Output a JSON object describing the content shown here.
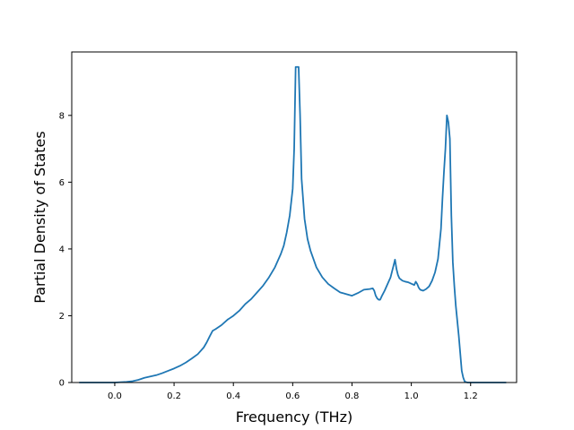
{
  "chart_data": {
    "type": "line",
    "title": "",
    "xlabel": "Frequency (THz)",
    "ylabel": "Partial Density of States",
    "xlim": [
      -0.145,
      1.355
    ],
    "ylim": [
      0,
      9.9
    ],
    "xticks": [
      0.0,
      0.2,
      0.4,
      0.6,
      0.8,
      1.0,
      1.2
    ],
    "xtick_labels": [
      "0.0",
      "0.2",
      "0.4",
      "0.6",
      "0.8",
      "1.0",
      "1.2"
    ],
    "yticks": [
      0,
      2,
      4,
      6,
      8
    ],
    "ytick_labels": [
      "0",
      "2",
      "4",
      "6",
      "8"
    ],
    "grid": false,
    "legend": "none",
    "colors": {
      "line": "#1f77b4"
    },
    "series": [
      {
        "x": [
          -0.12,
          -0.08,
          -0.04,
          0.0,
          0.02,
          0.04,
          0.06,
          0.08,
          0.1,
          0.12,
          0.14,
          0.16,
          0.18,
          0.2,
          0.22,
          0.24,
          0.26,
          0.28,
          0.3,
          0.31,
          0.32,
          0.33,
          0.34,
          0.36,
          0.38,
          0.4,
          0.42,
          0.44,
          0.46,
          0.48,
          0.5,
          0.52,
          0.54,
          0.56,
          0.57,
          0.58,
          0.59,
          0.6,
          0.605,
          0.61,
          0.615,
          0.62,
          0.625,
          0.63,
          0.64,
          0.65,
          0.66,
          0.68,
          0.7,
          0.72,
          0.74,
          0.76,
          0.78,
          0.8,
          0.82,
          0.84,
          0.86,
          0.87,
          0.875,
          0.88,
          0.885,
          0.89,
          0.895,
          0.9,
          0.91,
          0.92,
          0.93,
          0.94,
          0.945,
          0.95,
          0.955,
          0.96,
          0.97,
          0.98,
          0.99,
          1.0,
          1.01,
          1.015,
          1.02,
          1.025,
          1.03,
          1.04,
          1.05,
          1.06,
          1.07,
          1.08,
          1.09,
          1.1,
          1.105,
          1.11,
          1.115,
          1.12,
          1.125,
          1.13,
          1.135,
          1.14,
          1.145,
          1.15,
          1.16,
          1.17,
          1.175,
          1.18,
          1.185,
          1.19,
          1.2,
          1.22,
          1.25,
          1.28,
          1.32
        ],
        "y": [
          0.0,
          0.0,
          0.0,
          0.0,
          0.01,
          0.02,
          0.04,
          0.08,
          0.14,
          0.18,
          0.22,
          0.28,
          0.35,
          0.42,
          0.5,
          0.6,
          0.72,
          0.85,
          1.05,
          1.2,
          1.38,
          1.55,
          1.6,
          1.72,
          1.88,
          2.0,
          2.15,
          2.35,
          2.5,
          2.7,
          2.9,
          3.15,
          3.45,
          3.85,
          4.1,
          4.5,
          5.0,
          5.8,
          7.0,
          9.45,
          9.45,
          9.45,
          8.0,
          6.1,
          4.9,
          4.3,
          3.95,
          3.45,
          3.15,
          2.95,
          2.82,
          2.7,
          2.65,
          2.6,
          2.68,
          2.78,
          2.8,
          2.82,
          2.75,
          2.6,
          2.52,
          2.48,
          2.48,
          2.58,
          2.75,
          2.95,
          3.15,
          3.5,
          3.68,
          3.4,
          3.22,
          3.12,
          3.05,
          3.02,
          3.0,
          2.96,
          2.92,
          3.02,
          2.95,
          2.84,
          2.78,
          2.75,
          2.8,
          2.88,
          3.05,
          3.3,
          3.7,
          4.6,
          5.5,
          6.3,
          7.0,
          8.0,
          7.8,
          7.3,
          5.0,
          3.6,
          2.9,
          2.3,
          1.4,
          0.35,
          0.15,
          0.03,
          0.01,
          0.0,
          0.0,
          0.0,
          0.0,
          0.0,
          0.0
        ]
      }
    ]
  }
}
